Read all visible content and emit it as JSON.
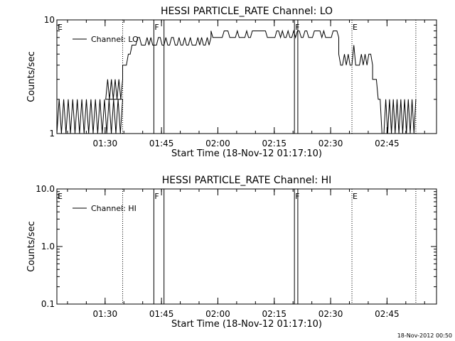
{
  "footer": {
    "timestamp": "18-Nov-2012 00:50"
  },
  "chart_data": [
    {
      "type": "line",
      "title": "HESSI PARTICLE_RATE Channel: LO",
      "xlabel": "Start Time (18-Nov-12 01:17:10)",
      "ylabel": "Counts/sec",
      "y_scale": "log",
      "ylim": [
        1,
        10
      ],
      "y_ticks": [
        1,
        10
      ],
      "y_tick_labels": [
        "1",
        "10"
      ],
      "xlim_minutes": [
        0,
        101
      ],
      "x_ticks_minutes": [
        12.83,
        27.83,
        42.83,
        57.83,
        72.83,
        87.83
      ],
      "x_tick_labels": [
        "01:30",
        "01:45",
        "02:00",
        "02:15",
        "02:30",
        "02:45"
      ],
      "legend": {
        "label": "Channel: LO",
        "placement": "top-left"
      },
      "markers": [
        {
          "label": "E",
          "minute": 0,
          "style": "none"
        },
        {
          "label": "",
          "minute": 17.5,
          "style": "dotted"
        },
        {
          "label": "F",
          "minute": 25.8,
          "style": "solid"
        },
        {
          "label": "",
          "minute": 28.5,
          "style": "solid"
        },
        {
          "label": "F",
          "minute": 63.2,
          "style": "solid"
        },
        {
          "label": "",
          "minute": 64.1,
          "style": "solid"
        },
        {
          "label": "E",
          "minute": 78.5,
          "style": "dotted"
        },
        {
          "label": "",
          "minute": 95.5,
          "style": "dotted"
        }
      ],
      "series": [
        {
          "name": "Channel: LO",
          "segments": [
            {
              "from_minute": 0,
              "to_minute": 17.5,
              "pattern": "toggle",
              "values": [
                1,
                2
              ],
              "step_minutes": 0.6
            },
            {
              "from_minute": 13.0,
              "to_minute": 17.5,
              "pattern": "toggle",
              "values": [
                2,
                3
              ],
              "step_minutes": 0.5
            },
            {
              "from_minute": 17.5,
              "to_minute": 20.5,
              "pattern": "rise",
              "values": [
                4,
                5,
                6
              ],
              "step_minutes": 0.5
            },
            {
              "from_minute": 20.5,
              "to_minute": 41.0,
              "pattern": "noise",
              "values": [
                6,
                7
              ],
              "step_minutes": 0.5
            },
            {
              "from_minute": 41.0,
              "to_minute": 75.0,
              "pattern": "noise",
              "values": [
                7,
                8
              ],
              "step_minutes": 0.5
            },
            {
              "from_minute": 75.0,
              "to_minute": 84.0,
              "pattern": "noise",
              "values": [
                4,
                5,
                6
              ],
              "step_minutes": 0.5
            },
            {
              "from_minute": 84.0,
              "to_minute": 87.0,
              "pattern": "fall",
              "values": [
                3,
                2,
                1
              ],
              "step_minutes": 0.5
            },
            {
              "from_minute": 87.0,
              "to_minute": 95.5,
              "pattern": "toggle",
              "values": [
                1,
                2
              ],
              "step_minutes": 0.5
            }
          ]
        }
      ]
    },
    {
      "type": "line",
      "title": "HESSI PARTICLE_RATE Channel: HI",
      "xlabel": "Start Time (18-Nov-12 01:17:10)",
      "ylabel": "Counts/sec",
      "y_scale": "log",
      "ylim": [
        0.1,
        10
      ],
      "y_ticks": [
        0.1,
        1,
        10
      ],
      "y_tick_labels": [
        "0.1",
        "1.0",
        "10.0"
      ],
      "xlim_minutes": [
        0,
        101
      ],
      "x_ticks_minutes": [
        12.83,
        27.83,
        42.83,
        57.83,
        72.83,
        87.83
      ],
      "x_tick_labels": [
        "01:30",
        "01:45",
        "02:00",
        "02:15",
        "02:30",
        "02:45"
      ],
      "legend": {
        "label": "Channel: HI",
        "placement": "top-left"
      },
      "markers": [
        {
          "label": "E",
          "minute": 0,
          "style": "none"
        },
        {
          "label": "",
          "minute": 17.5,
          "style": "dotted"
        },
        {
          "label": "F",
          "minute": 25.8,
          "style": "solid"
        },
        {
          "label": "",
          "minute": 28.5,
          "style": "solid"
        },
        {
          "label": "F",
          "minute": 63.2,
          "style": "solid"
        },
        {
          "label": "",
          "minute": 64.1,
          "style": "solid"
        },
        {
          "label": "E",
          "minute": 78.5,
          "style": "dotted"
        },
        {
          "label": "",
          "minute": 95.5,
          "style": "dotted"
        }
      ],
      "series": [
        {
          "name": "Channel: HI",
          "segments": []
        }
      ]
    }
  ]
}
